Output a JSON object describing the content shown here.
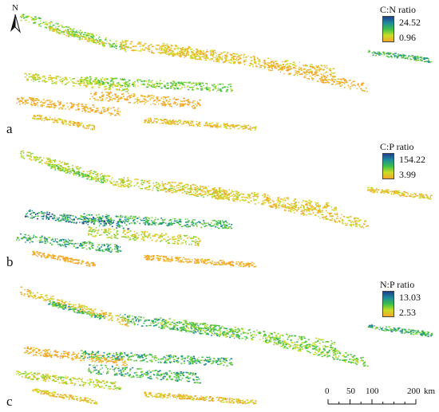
{
  "north_arrow": {
    "letter": "N",
    "icon": "north-arrow-icon"
  },
  "panels": [
    {
      "label": "a",
      "legend": {
        "title": "C:N ratio",
        "max": "24.52",
        "min": "0.96",
        "gradient": [
          "#1d3f8c",
          "#1f8a9a",
          "#3cbf4a",
          "#c8dd28",
          "#f3a62a"
        ]
      }
    },
    {
      "label": "b",
      "legend": {
        "title": "C:P ratio",
        "max": "154.22",
        "min": "3.99",
        "gradient": [
          "#1d3f8c",
          "#1f8a9a",
          "#3cbf4a",
          "#c8dd28",
          "#f3a62a"
        ]
      }
    },
    {
      "label": "c",
      "legend": {
        "title": "N:P ratio",
        "max": "13.03",
        "min": "2.53",
        "gradient": [
          "#1d3f8c",
          "#1f8a9a",
          "#3cbf4a",
          "#c8dd28",
          "#f3a62a"
        ]
      }
    }
  ],
  "scale_bar": {
    "ticks": [
      "0",
      "50",
      "100",
      "200"
    ],
    "unit": "km"
  }
}
